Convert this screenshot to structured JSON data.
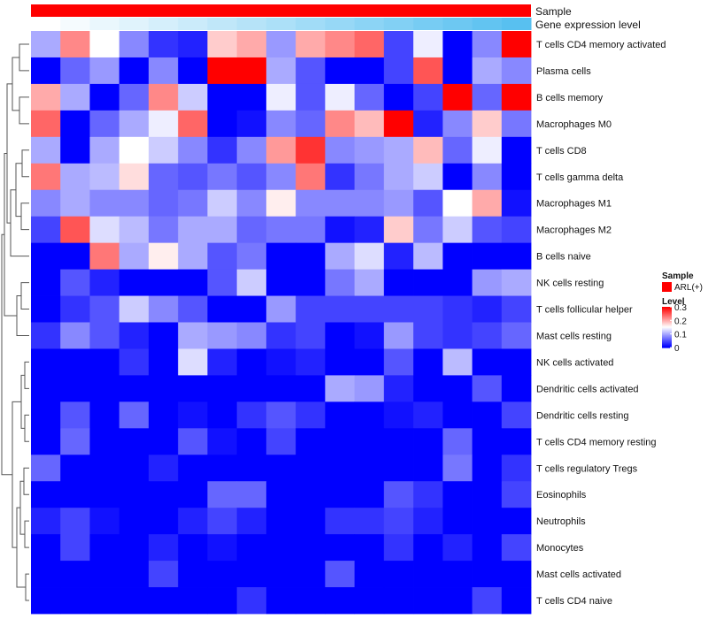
{
  "chart_data": {
    "type": "heatmap",
    "title": "",
    "annotations": [
      {
        "name": "Sample",
        "color": "#ff0000"
      },
      {
        "name": "Gene expression level",
        "gradient": [
          "#ffffff",
          "#58c0f0"
        ]
      }
    ],
    "rows": [
      "T cells CD4 memory activated",
      "Plasma cells",
      "B cells memory",
      "Macrophages M0",
      "T cells CD8",
      "T cells gamma delta",
      "Macrophages M1",
      "Macrophages M2",
      "B cells naive",
      "NK cells resting",
      "T cells follicular helper",
      "Mast cells resting",
      "NK cells activated",
      "Dendritic cells activated",
      "Dendritic cells resting",
      "T cells CD4 memory resting",
      "T cells regulatory  Tregs",
      "Eosinophils",
      "Neutrophils",
      "Monocytes",
      "Mast cells activated",
      "T cells CD4 naive"
    ],
    "n_columns": 17,
    "values": [
      [
        0.1,
        0.22,
        0.15,
        0.08,
        0.03,
        0.02,
        0.18,
        0.2,
        0.09,
        0.2,
        0.22,
        0.24,
        0.04,
        0.14,
        0.0,
        0.08,
        0.3
      ],
      [
        0.0,
        0.06,
        0.09,
        0.0,
        0.08,
        0.0,
        0.3,
        0.3,
        0.1,
        0.05,
        0.0,
        0.0,
        0.04,
        0.25,
        0.0,
        0.1,
        0.08
      ],
      [
        0.2,
        0.1,
        0.0,
        0.06,
        0.22,
        0.12,
        0.0,
        0.0,
        0.14,
        0.05,
        0.14,
        0.06,
        0.0,
        0.04,
        0.3,
        0.06,
        0.3
      ],
      [
        0.24,
        0.0,
        0.06,
        0.1,
        0.14,
        0.24,
        0.0,
        0.01,
        0.08,
        0.06,
        0.22,
        0.19,
        0.3,
        0.02,
        0.08,
        0.18,
        0.07
      ],
      [
        0.1,
        0.0,
        0.1,
        0.15,
        0.12,
        0.08,
        0.03,
        0.08,
        0.21,
        0.27,
        0.08,
        0.09,
        0.1,
        0.19,
        0.06,
        0.14,
        0.0
      ],
      [
        0.23,
        0.1,
        0.11,
        0.17,
        0.06,
        0.05,
        0.07,
        0.05,
        0.08,
        0.23,
        0.03,
        0.07,
        0.1,
        0.12,
        0.0,
        0.08,
        0.0
      ],
      [
        0.08,
        0.1,
        0.08,
        0.08,
        0.06,
        0.07,
        0.12,
        0.08,
        0.16,
        0.08,
        0.08,
        0.08,
        0.09,
        0.05,
        0.15,
        0.2,
        0.01
      ],
      [
        0.04,
        0.25,
        0.13,
        0.11,
        0.07,
        0.1,
        0.1,
        0.06,
        0.07,
        0.07,
        0.01,
        0.02,
        0.18,
        0.07,
        0.12,
        0.05,
        0.04
      ],
      [
        0.0,
        0.0,
        0.23,
        0.1,
        0.16,
        0.1,
        0.05,
        0.07,
        0.0,
        0.0,
        0.1,
        0.13,
        0.02,
        0.11,
        0.0,
        0.0,
        0.0
      ],
      [
        0.0,
        0.05,
        0.02,
        0.0,
        0.0,
        0.0,
        0.05,
        0.12,
        0.0,
        0.0,
        0.07,
        0.1,
        0.0,
        0.0,
        0.0,
        0.09,
        0.1
      ],
      [
        0.0,
        0.03,
        0.05,
        0.12,
        0.08,
        0.05,
        0.0,
        0.0,
        0.09,
        0.04,
        0.04,
        0.04,
        0.04,
        0.04,
        0.03,
        0.02,
        0.04
      ],
      [
        0.03,
        0.08,
        0.05,
        0.02,
        0.0,
        0.1,
        0.09,
        0.08,
        0.03,
        0.04,
        0.0,
        0.01,
        0.09,
        0.04,
        0.03,
        0.04,
        0.06
      ],
      [
        0.0,
        0.0,
        0.0,
        0.03,
        0.0,
        0.13,
        0.02,
        0.0,
        0.01,
        0.02,
        0.0,
        0.0,
        0.05,
        0.0,
        0.11,
        0.0,
        0.0
      ],
      [
        0.0,
        0.0,
        0.0,
        0.0,
        0.0,
        0.0,
        0.0,
        0.0,
        0.0,
        0.0,
        0.1,
        0.09,
        0.02,
        0.0,
        0.0,
        0.05,
        0.0
      ],
      [
        0.0,
        0.05,
        0.0,
        0.06,
        0.0,
        0.01,
        0.0,
        0.03,
        0.05,
        0.03,
        0.0,
        0.0,
        0.01,
        0.02,
        0.0,
        0.0,
        0.04
      ],
      [
        0.0,
        0.06,
        0.0,
        0.0,
        0.0,
        0.05,
        0.01,
        0.0,
        0.04,
        0.0,
        0.0,
        0.0,
        0.0,
        0.0,
        0.06,
        0.0,
        0.0
      ],
      [
        0.06,
        0.0,
        0.0,
        0.0,
        0.02,
        0.0,
        0.0,
        0.0,
        0.0,
        0.0,
        0.0,
        0.0,
        0.0,
        0.0,
        0.07,
        0.0,
        0.03
      ],
      [
        0.0,
        0.0,
        0.0,
        0.0,
        0.0,
        0.0,
        0.06,
        0.06,
        0.0,
        0.0,
        0.0,
        0.0,
        0.05,
        0.03,
        0.0,
        0.0,
        0.04
      ],
      [
        0.02,
        0.04,
        0.01,
        0.0,
        0.0,
        0.02,
        0.04,
        0.02,
        0.0,
        0.0,
        0.03,
        0.03,
        0.04,
        0.02,
        0.0,
        0.0,
        0.0
      ],
      [
        0.0,
        0.04,
        0.0,
        0.0,
        0.02,
        0.0,
        0.01,
        0.0,
        0.0,
        0.0,
        0.0,
        0.0,
        0.03,
        0.0,
        0.02,
        0.0,
        0.04
      ],
      [
        0.0,
        0.0,
        0.0,
        0.0,
        0.04,
        0.0,
        0.0,
        0.0,
        0.0,
        0.0,
        0.05,
        0.0,
        0.0,
        0.0,
        0.0,
        0.0,
        0.0
      ],
      [
        0.0,
        0.0,
        0.0,
        0.0,
        0.0,
        0.0,
        0.0,
        0.03,
        0.0,
        0.0,
        0.0,
        0.0,
        0.0,
        0.0,
        0.0,
        0.04,
        0.0
      ]
    ],
    "color_scale": {
      "low": "#0000ff",
      "mid": "#ffffff",
      "high": "#ff0000",
      "min": 0,
      "mid_value": 0.15,
      "max": 0.3
    },
    "legend_sample": {
      "title": "Sample",
      "item": "ARL(+)",
      "color": "#ff0000"
    },
    "legend_level": {
      "title": "Level",
      "ticks": [
        "0.3",
        "0.2",
        "0.1",
        "0"
      ],
      "tick_values": [
        0.3,
        0.2,
        0.1,
        0
      ]
    }
  }
}
